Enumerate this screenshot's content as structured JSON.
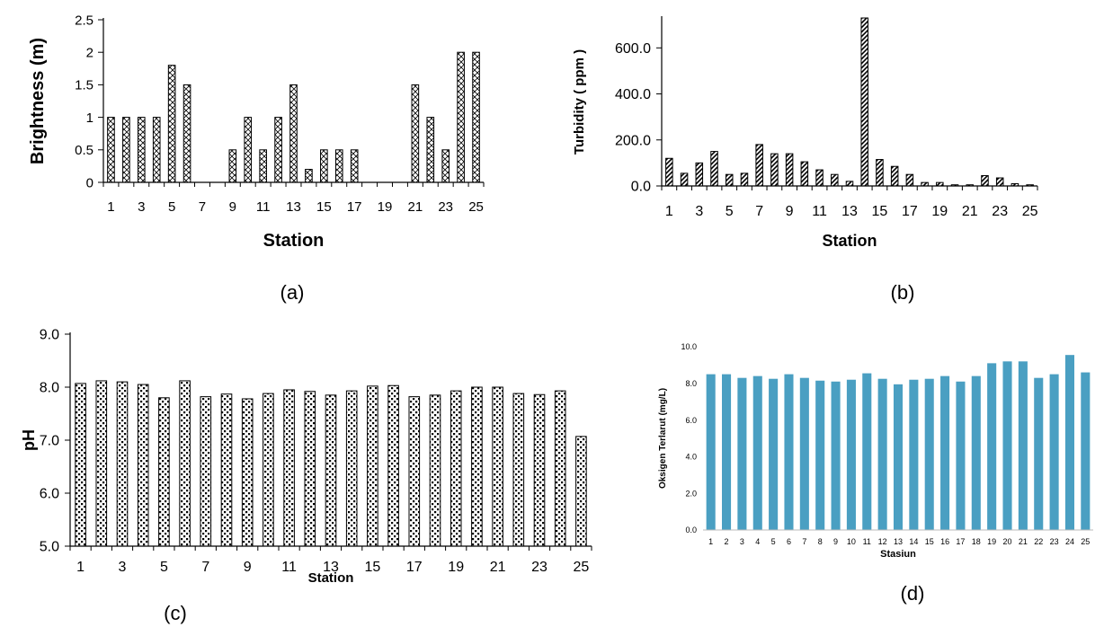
{
  "chart_data": [
    {
      "id": "a",
      "type": "bar",
      "caption": "(a)",
      "xlabel": "Station",
      "ylabel": "Brightness (m)",
      "ylim": [
        0,
        2.5
      ],
      "y_ticks": [
        "0",
        "0.5",
        "1",
        "1.5",
        "2",
        "2.5"
      ],
      "x_tick_labels": [
        "1",
        "",
        "3",
        "",
        "5",
        "",
        "7",
        "",
        "9",
        "",
        "11",
        "",
        "13",
        "",
        "15",
        "",
        "17",
        "",
        "19",
        "",
        "21",
        "",
        "23",
        "",
        "25"
      ],
      "categories": [
        1,
        2,
        3,
        4,
        5,
        6,
        7,
        8,
        9,
        10,
        11,
        12,
        13,
        14,
        15,
        16,
        17,
        18,
        19,
        20,
        21,
        22,
        23,
        24,
        25
      ],
      "values": [
        1,
        1,
        1,
        1,
        1.8,
        1.5,
        0,
        0,
        0.5,
        1,
        0.5,
        1,
        1.5,
        0.2,
        0.5,
        0.5,
        0.5,
        0,
        0,
        0,
        1.5,
        1,
        0.5,
        2,
        2
      ],
      "pattern": "cross"
    },
    {
      "id": "b",
      "type": "bar",
      "caption": "(b)",
      "xlabel": "Station",
      "ylabel": "Turbidity ( ppm )",
      "ylim": [
        0,
        730
      ],
      "y_ticks": [
        "0.0",
        "200.0",
        "400.0",
        "600.0"
      ],
      "x_tick_labels": [
        "1",
        "",
        "3",
        "",
        "5",
        "",
        "7",
        "",
        "9",
        "",
        "11",
        "",
        "13",
        "",
        "15",
        "",
        "17",
        "",
        "19",
        "",
        "21",
        "",
        "23",
        "",
        "25"
      ],
      "categories": [
        1,
        2,
        3,
        4,
        5,
        6,
        7,
        8,
        9,
        10,
        11,
        12,
        13,
        14,
        15,
        16,
        17,
        18,
        19,
        20,
        21,
        22,
        23,
        24,
        25
      ],
      "values": [
        120,
        55,
        100,
        150,
        50,
        55,
        180,
        140,
        140,
        105,
        70,
        50,
        20,
        730,
        115,
        85,
        50,
        15,
        15,
        5,
        5,
        45,
        35,
        10,
        5
      ],
      "pattern": "diagonal"
    },
    {
      "id": "c",
      "type": "bar",
      "caption": "(c)",
      "xlabel": "Station",
      "ylabel": "pH",
      "ylim": [
        5.0,
        9.0
      ],
      "y_ticks": [
        "5.0",
        "6.0",
        "7.0",
        "8.0",
        "9.0"
      ],
      "x_tick_labels": [
        "1",
        "",
        "3",
        "",
        "5",
        "",
        "7",
        "",
        "9",
        "",
        "11",
        "",
        "13",
        "",
        "15",
        "",
        "17",
        "",
        "19",
        "",
        "21",
        "",
        "23",
        "",
        "25"
      ],
      "categories": [
        1,
        2,
        3,
        4,
        5,
        6,
        7,
        8,
        9,
        10,
        11,
        12,
        13,
        14,
        15,
        16,
        17,
        18,
        19,
        20,
        21,
        22,
        23,
        24,
        25
      ],
      "values": [
        8.07,
        8.12,
        8.1,
        8.05,
        7.8,
        8.12,
        7.82,
        7.87,
        7.78,
        7.88,
        7.95,
        7.92,
        7.85,
        7.93,
        8.02,
        8.03,
        7.82,
        7.85,
        7.93,
        8.0,
        8.0,
        7.88,
        7.86,
        7.93,
        7.07
      ],
      "pattern": "dots"
    },
    {
      "id": "d",
      "type": "bar",
      "caption": "(d)",
      "xlabel": "Stasiun",
      "ylabel": "Oksigen Terlarut (mg/L)",
      "ylim": [
        0,
        10.0
      ],
      "y_ticks": [
        "0.0",
        "2.0",
        "4.0",
        "6.0",
        "8.0",
        "10.0"
      ],
      "x_tick_labels": [
        "1",
        "2",
        "3",
        "4",
        "5",
        "6",
        "7",
        "8",
        "9",
        "10",
        "11",
        "12",
        "13",
        "14",
        "15",
        "16",
        "17",
        "18",
        "19",
        "20",
        "21",
        "22",
        "23",
        "24",
        "25"
      ],
      "categories": [
        1,
        2,
        3,
        4,
        5,
        6,
        7,
        8,
        9,
        10,
        11,
        12,
        13,
        14,
        15,
        16,
        17,
        18,
        19,
        20,
        21,
        22,
        23,
        24,
        25
      ],
      "values": [
        8.5,
        8.5,
        8.3,
        8.4,
        8.25,
        8.5,
        8.3,
        8.15,
        8.1,
        8.2,
        8.55,
        8.25,
        7.95,
        8.2,
        8.25,
        8.4,
        8.1,
        8.4,
        9.1,
        9.2,
        9.2,
        8.3,
        8.5,
        9.55,
        8.6
      ],
      "color": "#4a9fc2"
    }
  ]
}
